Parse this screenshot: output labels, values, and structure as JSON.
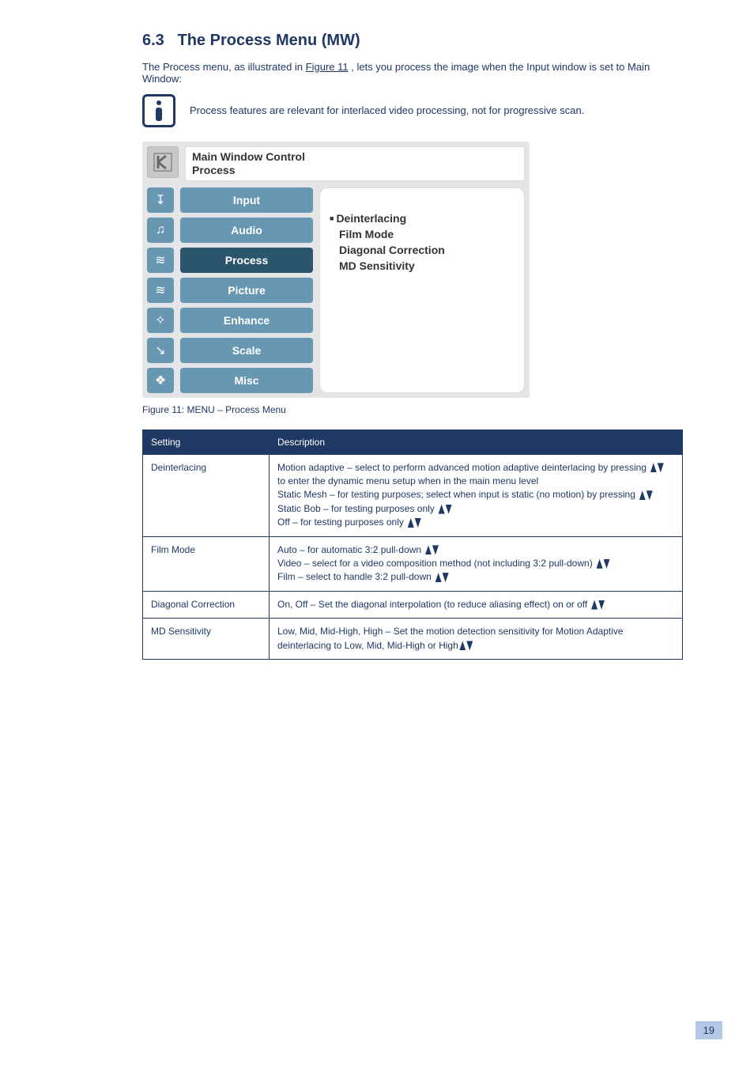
{
  "section": {
    "number": "6.3",
    "title": "The Process Menu (MW)",
    "lead1_before": "The Process menu, as illustrated in ",
    "lead1_link": "Figure 11",
    "lead1_after": ", lets you process the image when the Input window is set to Main Window:",
    "note": "Process features are relevant for interlaced video processing, not for progressive scan.",
    "caption": "Figure 11: MENU – Process Menu",
    "page_number": "19"
  },
  "osd": {
    "header_line1": "Main Window Control",
    "header_line2": "Process",
    "menu": [
      {
        "label": "Input",
        "bg": "#6797b1",
        "icon": "↧"
      },
      {
        "label": "Audio",
        "bg": "#6797b1",
        "icon": "♫"
      },
      {
        "label": "Process",
        "bg": "#2b556d",
        "icon": "≋"
      },
      {
        "label": "Picture",
        "bg": "#6797b1",
        "icon": "≋"
      },
      {
        "label": "Enhance",
        "bg": "#6797b1",
        "icon": "✧"
      },
      {
        "label": "Scale",
        "bg": "#6797b1",
        "icon": "↘"
      },
      {
        "label": "Misc",
        "bg": "#6797b1",
        "icon": "❖"
      }
    ],
    "content": {
      "items": [
        {
          "text": "Deinterlacing",
          "selected": true
        },
        {
          "text": "Film Mode",
          "selected": false
        },
        {
          "text": "Diagonal Correction",
          "selected": false
        },
        {
          "text": "MD Sensitivity",
          "selected": false
        }
      ]
    }
  },
  "table": {
    "headers": [
      "Setting",
      "Description"
    ],
    "rows": [
      {
        "setting": "Deinterlacing",
        "items": [
          {
            "label": "Motion adaptive",
            "after": " – select to perform advanced motion adaptive deinterlacing by pressing ",
            "nav": "updown",
            "tail": " to enter the dynamic menu setup when in the main menu level"
          },
          {
            "label": "Static Mesh",
            "after": " – for testing purposes; select when input is static (no motion) by pressing ",
            "nav": "updown"
          },
          {
            "label": "Static Bob",
            "after": " – for testing purposes only ",
            "nav": "updown"
          },
          {
            "label": "Off",
            "after": " – for testing purposes only ",
            "nav": "updown"
          }
        ]
      },
      {
        "setting": "Film Mode",
        "items": [
          {
            "label": "Auto",
            "after": " – for automatic 3:2 pull-down ",
            "nav": "updown"
          },
          {
            "label": "Video",
            "after": " – select for a video composition method (not including 3:2 pull-down) ",
            "nav": "updown"
          },
          {
            "label": "Film",
            "after": " – select to handle 3:2 pull-down ",
            "nav": "updown"
          }
        ]
      },
      {
        "setting": "Diagonal Correction",
        "items": [
          {
            "label": "On, Off",
            "after": " – Set the diagonal interpolation (to reduce aliasing effect) on or off ",
            "nav": "updown"
          }
        ]
      },
      {
        "setting": "MD Sensitivity",
        "items": [
          {
            "label": "Low, Mid, Mid-High, High ",
            "nav": "updown",
            "after": " – Set the motion detection sensitivity for Motion Adaptive deinterlacing to Low, Mid, Mid-High or High"
          }
        ]
      }
    ]
  }
}
